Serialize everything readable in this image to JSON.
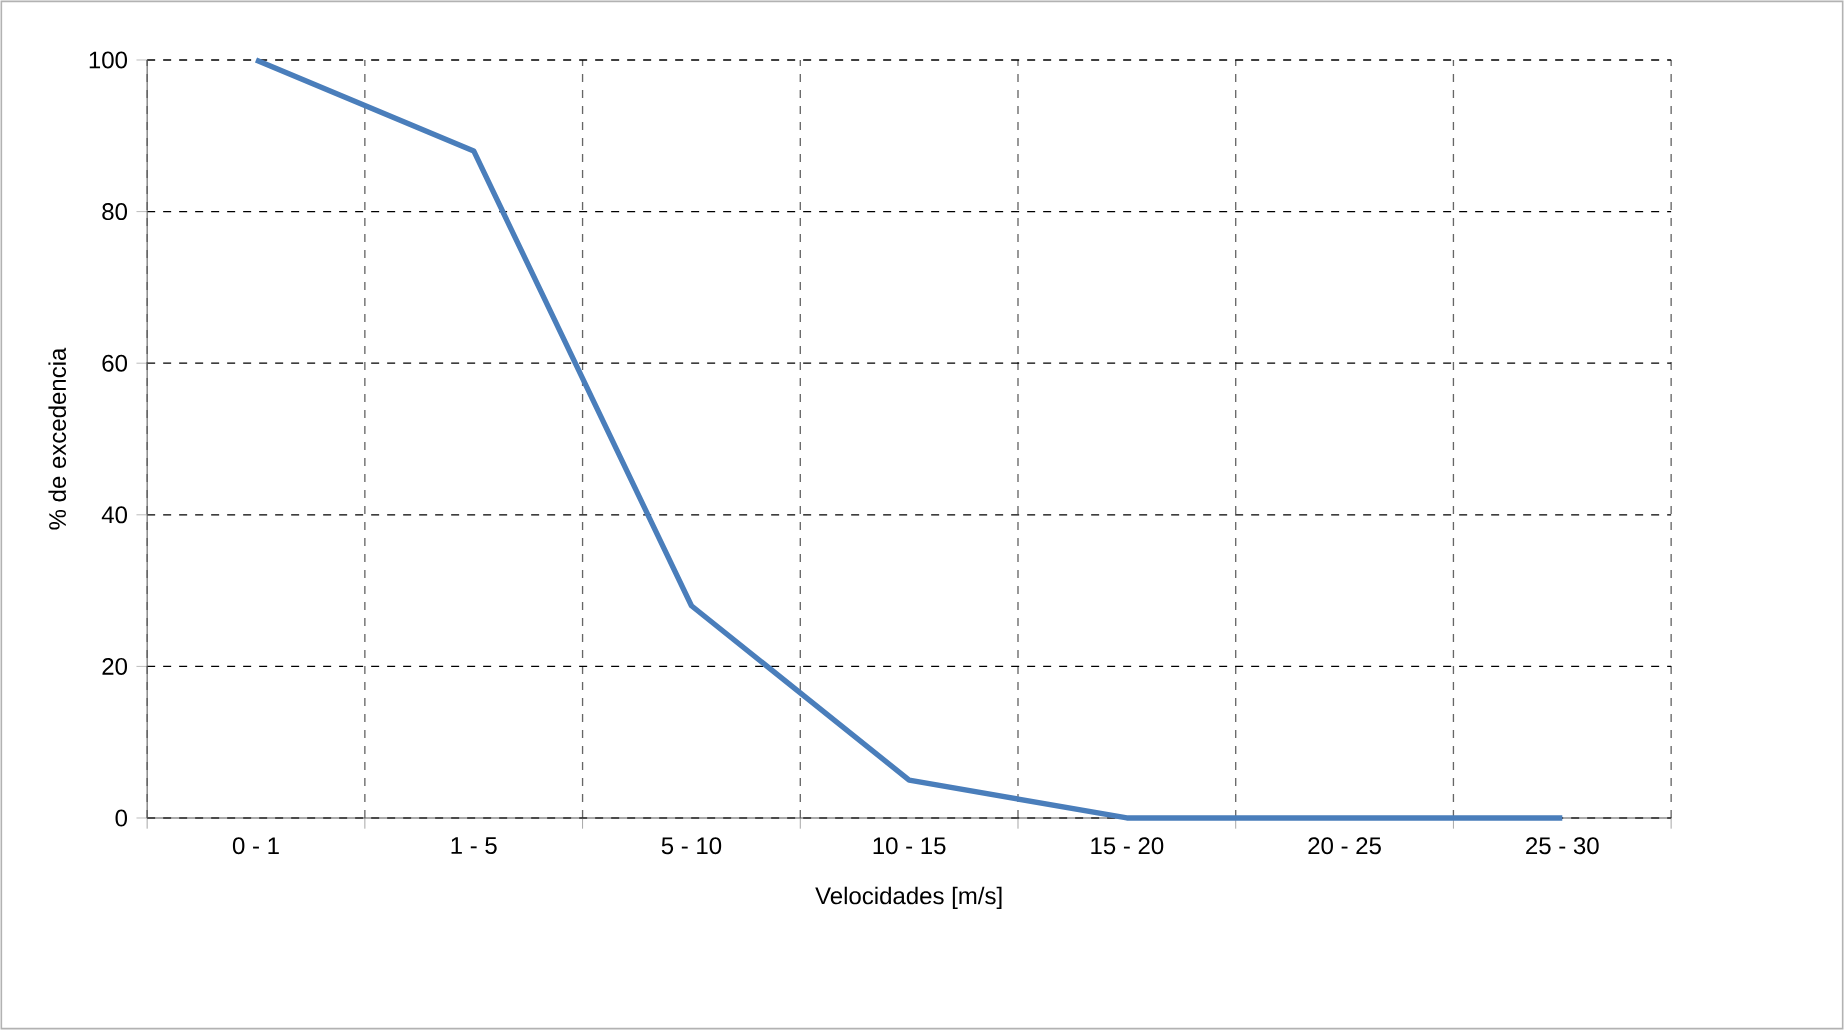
{
  "chart_data": {
    "type": "line",
    "xlabel": "Velocidades [m/s]",
    "ylabel": "% de excedencia",
    "categories": [
      "0 - 1",
      "1 - 5",
      "5 - 10",
      "10 - 15",
      "15 - 20",
      "20 - 25",
      "25 - 30"
    ],
    "series": [
      {
        "color": "#4a7ebb",
        "values": [
          100,
          88,
          28,
          5,
          0,
          0,
          0
        ]
      }
    ],
    "ylim": [
      0,
      100
    ],
    "yticks": [
      0,
      20,
      40,
      60,
      80,
      100
    ],
    "grid": true,
    "marker": "none",
    "line_style": "solid"
  }
}
